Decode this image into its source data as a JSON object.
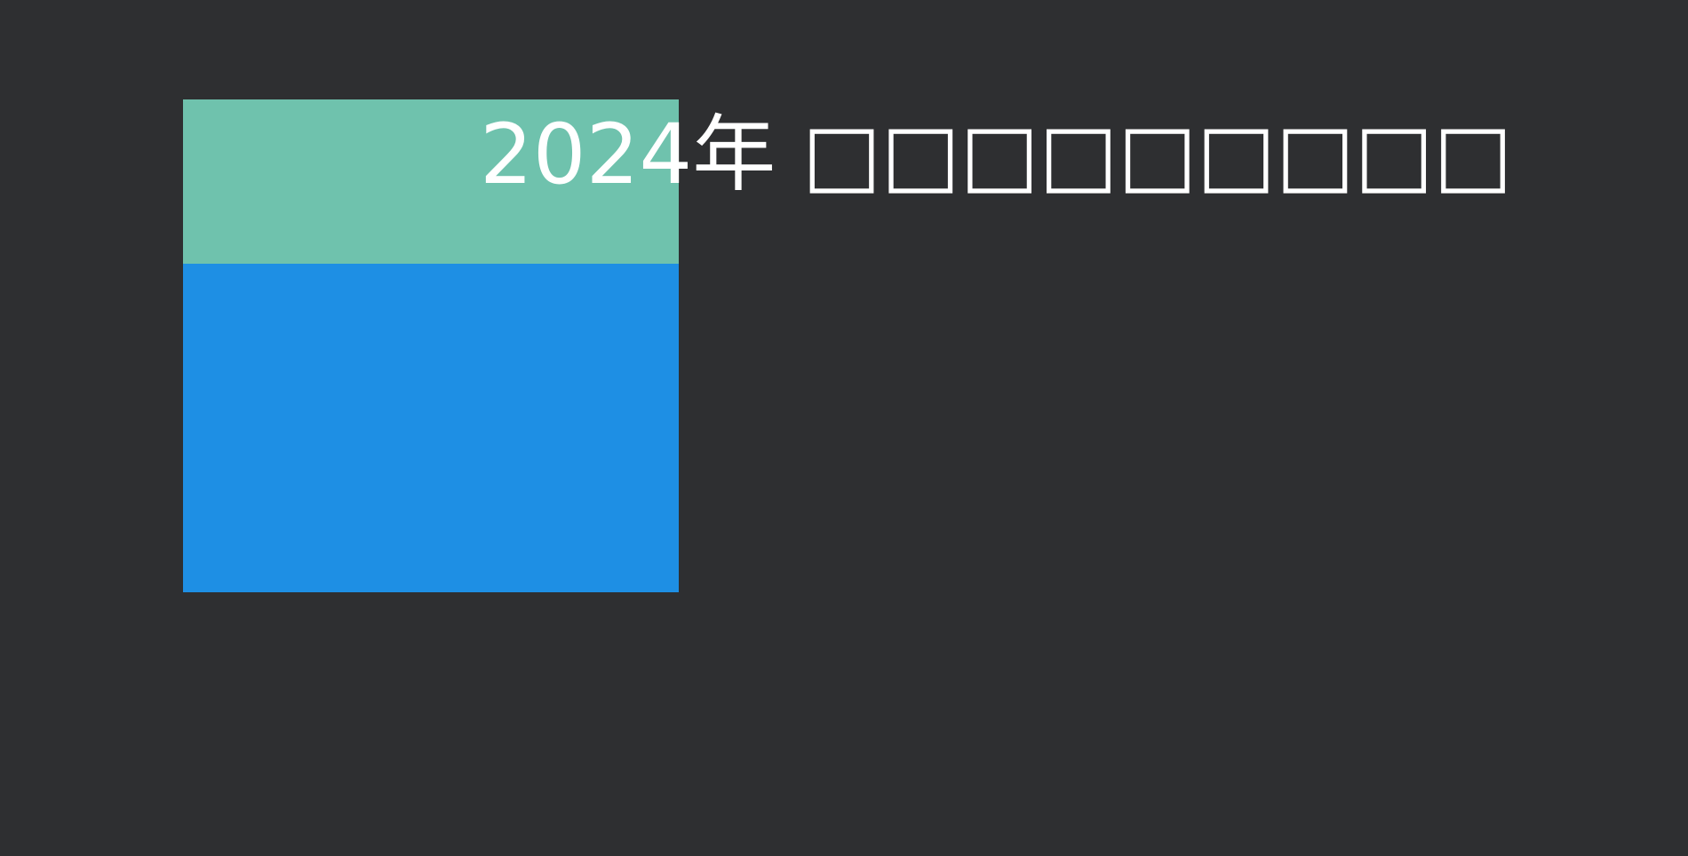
{
  "chart_data": {
    "type": "bar",
    "orientation": "stacked-vertical",
    "title": "2024年 □□□□□□□□□",
    "categories": [
      ""
    ],
    "series": [
      {
        "values": [
          2
        ],
        "color": "#1e8fe4"
      },
      {
        "values": [
          1
        ],
        "color": "#6fc2ad"
      }
    ],
    "ylim": [
      0,
      3
    ],
    "axes_visible": false,
    "grid": false,
    "legend": "none"
  },
  "colors": {
    "background": "#2e2f31",
    "title": "#ffffff"
  }
}
